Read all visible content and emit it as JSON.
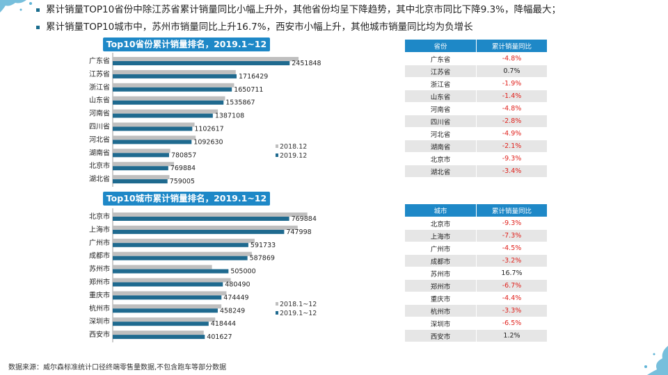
{
  "bullets": [
    "累计销量TOP10省份中除江苏省累计销量同比小幅上升外，其他省份均呈下降趋势，其中北京市同比下降9.3%，降幅最大；",
    "累计销量TOP10城市中，苏州市销量同比上升16.7%，西安市小幅上升，其他城市销量同比均为负增长"
  ],
  "colors": {
    "prev": "#bfbfbf",
    "curr": "#1f6a8f",
    "header": "#1e88c7",
    "negative": "#e0201b"
  },
  "chart_data": [
    {
      "type": "bar",
      "title": "Top10省份累计销量排名，2019.1~12",
      "orientation": "horizontal",
      "categories": [
        "广东省",
        "江苏省",
        "浙江省",
        "山东省",
        "河南省",
        "四川省",
        "河北省",
        "湖南省",
        "北京市",
        "湖北省"
      ],
      "series": [
        {
          "name": "2018.12",
          "values": [
            2575000,
            1705000,
            1682000,
            1557000,
            1457000,
            1134000,
            1149000,
            797000,
            849000,
            786000
          ]
        },
        {
          "name": "2019.12",
          "values": [
            2451848,
            1716429,
            1650711,
            1535867,
            1387108,
            1102617,
            1092630,
            780857,
            769884,
            759005
          ],
          "labels": [
            "2451848",
            "1716429",
            "1650711",
            "1535867",
            "1387108",
            "1102617",
            "1092630",
            "780857",
            "769884",
            "759005"
          ]
        }
      ],
      "legend_position": "right",
      "grid": false
    },
    {
      "type": "bar",
      "title": "Top10城市累计销量排名，2019.1~12",
      "orientation": "horizontal",
      "categories": [
        "北京市",
        "上海市",
        "广州市",
        "成都市",
        "苏州市",
        "郑州市",
        "重庆市",
        "杭州市",
        "深圳市",
        "西安市"
      ],
      "series": [
        {
          "name": "2018.1~12",
          "values": [
            849000,
            807000,
            619000,
            607000,
            433000,
            515000,
            496000,
            474000,
            447000,
            397000
          ]
        },
        {
          "name": "2019.1~12",
          "values": [
            769884,
            747998,
            591733,
            587869,
            505000,
            480490,
            474449,
            458249,
            418444,
            401627
          ],
          "labels": [
            "769884",
            "747998",
            "591733",
            "587869",
            "505000",
            "480490",
            "474449",
            "458249",
            "418444",
            "401627"
          ]
        }
      ],
      "legend_position": "right",
      "grid": false
    }
  ],
  "province_table": {
    "headers": [
      "省份",
      "累计销量同比"
    ],
    "rows": [
      [
        "广东省",
        "-4.8%"
      ],
      [
        "江苏省",
        "0.7%"
      ],
      [
        "浙江省",
        "-1.9%"
      ],
      [
        "山东省",
        "-1.4%"
      ],
      [
        "河南省",
        "-4.8%"
      ],
      [
        "四川省",
        "-2.8%"
      ],
      [
        "河北省",
        "-4.9%"
      ],
      [
        "湖南省",
        "-2.1%"
      ],
      [
        "北京市",
        "-9.3%"
      ],
      [
        "湖北省",
        "-3.4%"
      ]
    ]
  },
  "city_table": {
    "headers": [
      "城市",
      "累计销量同比"
    ],
    "rows": [
      [
        "北京市",
        "-9.3%"
      ],
      [
        "上海市",
        "-7.3%"
      ],
      [
        "广州市",
        "-4.5%"
      ],
      [
        "成都市",
        "-3.2%"
      ],
      [
        "苏州市",
        "16.7%"
      ],
      [
        "郑州市",
        "-6.7%"
      ],
      [
        "重庆市",
        "-4.4%"
      ],
      [
        "杭州市",
        "-3.3%"
      ],
      [
        "深圳市",
        "-6.5%"
      ],
      [
        "西安市",
        "1.2%"
      ]
    ]
  },
  "source": "数据来源：威尔森标准统计口径终端零售量数据,不包含跑车等部分数据"
}
